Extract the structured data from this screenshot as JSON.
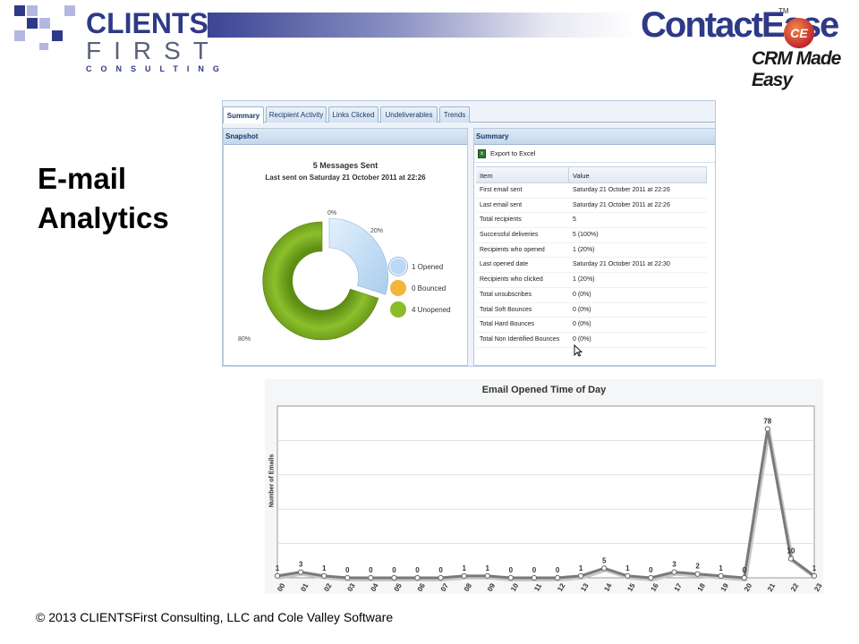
{
  "header": {
    "company_line1": "CLIENTS",
    "company_line2": "FIRST",
    "company_line3": "CONSULTING",
    "product_name": "ContactEase",
    "product_trademark": "TM",
    "product_badge": "CE",
    "product_tagline": "CRM Made Easy",
    "colors": {
      "navy": "#2e3a87",
      "squares_light": "#b3b8e0"
    }
  },
  "slide_title": {
    "line1": "E-mail",
    "line2": "Analytics"
  },
  "app": {
    "tabs": [
      {
        "label": "Summary",
        "active": true
      },
      {
        "label": "Recipient Activity",
        "active": false
      },
      {
        "label": "Links Clicked",
        "active": false
      },
      {
        "label": "Undeliverables",
        "active": false
      },
      {
        "label": "Trends",
        "active": false
      }
    ],
    "snapshot": {
      "header": "Snapshot",
      "title": "5 Messages Sent",
      "subtitle": "Last sent on Saturday 21 October 2011 at 22:26",
      "pct_labels": {
        "opened_start": "0%",
        "opened": "20%",
        "unopened": "80%"
      },
      "legend": [
        {
          "label": "1 Opened",
          "color": "#bcd9f3"
        },
        {
          "label": "0 Bounced",
          "color": "#f2b53a"
        },
        {
          "label": "4 Unopened",
          "color": "#8bbc2a"
        }
      ]
    },
    "summary": {
      "header": "Summary",
      "export_label": "Export to Excel",
      "columns": [
        "Item",
        "Value"
      ],
      "rows": [
        [
          "First email sent",
          "Saturday 21 October 2011 at 22:26"
        ],
        [
          "Last email sent",
          "Saturday 21 October 2011 at 22:26"
        ],
        [
          "Total recipients",
          "5"
        ],
        [
          "Successful deliveries",
          "5 (100%)"
        ],
        [
          "Recipients who opened",
          "1 (20%)"
        ],
        [
          "Last opened date",
          "Saturday 21 October 2011 at 22:30"
        ],
        [
          "Recipients who clicked",
          "1 (20%)"
        ],
        [
          "Total unsubscribes",
          "0 (0%)"
        ],
        [
          "Total Soft Bounces",
          "0 (0%)"
        ],
        [
          "Total Hard Bounces",
          "0 (0%)"
        ],
        [
          "Total Non Identified Bounces",
          "0 (0%)"
        ]
      ]
    }
  },
  "chart_data": {
    "type": "line",
    "title": "Email Opened Time of Day",
    "ylabel": "Number of Emails",
    "xlabel": "",
    "categories": [
      "00",
      "01",
      "02",
      "03",
      "04",
      "05",
      "06",
      "07",
      "08",
      "09",
      "10",
      "11",
      "12",
      "13",
      "14",
      "15",
      "16",
      "17",
      "18",
      "19",
      "20",
      "21",
      "22",
      "23"
    ],
    "values": [
      1,
      3,
      1,
      0,
      0,
      0,
      0,
      0,
      1,
      1,
      0,
      0,
      0,
      1,
      5,
      1,
      0,
      3,
      2,
      1,
      0,
      78,
      10,
      1
    ],
    "data_labels": [
      "1",
      "3",
      "1",
      "0",
      "0",
      "0",
      "0",
      "0",
      "1",
      "1",
      "0",
      "0",
      "0",
      "1",
      "5",
      "1",
      "0",
      "3",
      "2",
      "1",
      "0",
      "78",
      "10",
      "1"
    ],
    "ylim": [
      0,
      90
    ],
    "grid": true,
    "line_color": "#7a7a7a"
  },
  "footer": {
    "copyright": "© 2013 CLIENTSFirst Consulting, LLC and Cole Valley Software"
  }
}
